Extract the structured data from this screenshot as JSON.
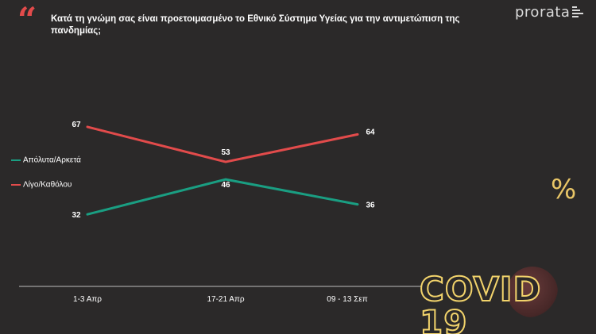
{
  "header": {
    "question": "Κατά τη γνώμη σας είναι προετοιμασμένο το Εθνικό Σύστημα Υγείας για την αντιμετώπιση της πανδημίας;",
    "brand": "prorata"
  },
  "badges": {
    "percent": "%",
    "covid": "COVID 19"
  },
  "colors": {
    "background": "#2b2929",
    "accent_red": "#e24b4b",
    "accent_teal": "#1a9e82",
    "badge_yellow": "#f2d36b"
  },
  "chart_data": {
    "type": "line",
    "categories": [
      "1-3 Απρ",
      "17-21 Απρ",
      "09 - 13 Σεπ"
    ],
    "series": [
      {
        "name": "Απόλυτα/Αρκετά",
        "values": [
          32,
          46,
          36
        ],
        "color": "#1a9e82"
      },
      {
        "name": "Λίγο/Καθόλου",
        "values": [
          67,
          53,
          64
        ],
        "color": "#e24b4b"
      }
    ],
    "ylim": [
      0,
      100
    ],
    "grid": false,
    "legend": "left"
  }
}
